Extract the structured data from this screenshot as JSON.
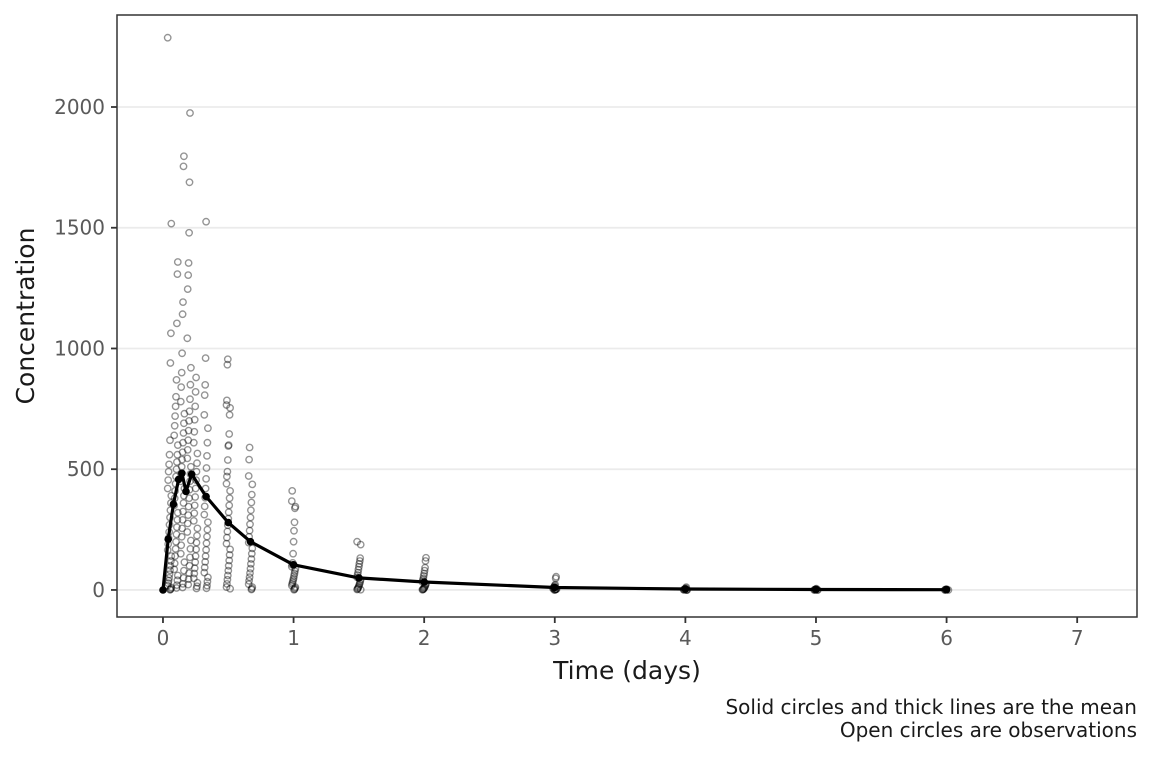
{
  "chart_data": {
    "type": "scatter",
    "title": "",
    "xlabel": "Time (days)",
    "ylabel": "Concentration",
    "caption": [
      "Solid circles and thick lines are the mean",
      "Open circles are observations"
    ],
    "legend": "none",
    "grid": "horizontal-major-only",
    "x_ticks": [
      0,
      1,
      2,
      3,
      4,
      5,
      6,
      7
    ],
    "y_ticks": [
      0,
      500,
      1000,
      1500,
      2000
    ],
    "xlim": [
      -0.352,
      7.458
    ],
    "ylim": [
      -112,
      2381
    ],
    "series": [
      {
        "name": "observations",
        "marker": "open-circle",
        "points_by_time": [
          {
            "t": 0.05,
            "values": [
              2287,
              1517,
              1063,
              940,
              620,
              560,
              520,
              490,
              455,
              420,
              390,
              360,
              330,
              300,
              270,
              240,
              215,
              190,
              165,
              140,
              120,
              100,
              82,
              65,
              50,
              38,
              28,
              18,
              10,
              5,
              2,
              1
            ]
          },
          {
            "t": 0.1,
            "values": [
              1358,
              1308,
              1104,
              870,
              800,
              760,
              720,
              680,
              640,
              600,
              560,
              530,
              500,
              470,
              440,
              410,
              380,
              350,
              320,
              290,
              260,
              230,
              200,
              170,
              140,
              110,
              85,
              60,
              40,
              20,
              8
            ]
          },
          {
            "t": 0.15,
            "values": [
              1796,
              1754,
              1192,
              1142,
              980,
              900,
              840,
              780,
              730,
              690,
              650,
              610,
              570,
              540,
              510,
              480,
              450,
              420,
              390,
              360,
              325,
              290,
              255,
              220,
              185,
              150,
              115,
              80,
              50,
              25,
              10
            ]
          },
          {
            "t": 0.2,
            "values": [
              1975,
              1688,
              1479,
              1354,
              1304,
              1246,
              1042,
              920,
              850,
              790,
              740,
              700,
              660,
              620,
              580,
              545,
              510,
              480,
              450,
              415,
              380,
              345,
              310,
              275,
              240,
              205,
              170,
              135,
              100,
              70,
              45,
              22
            ]
          },
          {
            "t": 0.25,
            "values": [
              880,
              820,
              760,
              705,
              655,
              610,
              565,
              525,
              490,
              455,
              420,
              385,
              350,
              318,
              286,
              255,
              225,
              196,
              168,
              140,
              115,
              90,
              68,
              48,
              30,
              15,
              6
            ]
          },
          {
            "t": 0.33,
            "values": [
              1525,
              960,
              849,
              807,
              725,
              670,
              610,
              555,
              505,
              460,
              420,
              382,
              346,
              312,
              280,
              250,
              221,
              193,
              166,
              140,
              116,
              93,
              72,
              52,
              34,
              18,
              7
            ]
          },
          {
            "t": 0.5,
            "values": [
              955,
              933,
              785,
              766,
              754,
              725,
              646,
              600,
              596,
              538,
              490,
              470,
              440,
              410,
              380,
              350,
              322,
              295,
              268,
              242,
              217,
              192,
              168,
              145,
              122,
              100,
              80,
              60,
              42,
              25,
              12,
              5
            ]
          },
          {
            "t": 0.67,
            "values": [
              590,
              540,
              472,
              437,
              395,
              362,
              330,
              300,
              272,
              246,
              220,
              196,
              172,
              150,
              128,
              108,
              88,
              70,
              53,
              38,
              24,
              12,
              5,
              2
            ]
          },
          {
            "t": 1,
            "values": [
              410,
              368,
              345,
              338,
              280,
              245,
              200,
              150,
              112,
              104,
              96,
              88,
              78,
              68,
              58,
              48,
              40,
              32,
              25,
              18,
              12,
              7,
              3,
              1
            ]
          },
          {
            "t": 1.5,
            "values": [
              200,
              188,
              132,
              120,
              108,
              96,
              84,
              72,
              62,
              52,
              43,
              35,
              28,
              22,
              16,
              11,
              7,
              4,
              2,
              1
            ]
          },
          {
            "t": 2,
            "values": [
              133,
              120,
              92,
              80,
              68,
              58,
              48,
              40,
              33,
              26,
              20,
              15,
              11,
              8,
              5,
              3,
              2,
              1
            ]
          },
          {
            "t": 3,
            "values": [
              55,
              48,
              22,
              18,
              14,
              11,
              8,
              6,
              4,
              3,
              2,
              1,
              1,
              0
            ]
          },
          {
            "t": 4,
            "values": [
              12,
              8,
              5,
              3,
              2,
              1,
              1,
              0,
              0,
              0
            ]
          },
          {
            "t": 5,
            "values": [
              5,
              3,
              2,
              1,
              1,
              0,
              0,
              0
            ]
          },
          {
            "t": 6,
            "values": [
              3,
              2,
              1,
              1,
              0,
              0
            ]
          }
        ]
      },
      {
        "name": "mean",
        "marker": "solid-circle-thick-line",
        "t": [
          0,
          0.04,
          0.08,
          0.12,
          0.145,
          0.176,
          0.22,
          0.33,
          0.5,
          0.67,
          1,
          1.5,
          2,
          3,
          4,
          5,
          6
        ],
        "values": [
          0,
          210,
          355,
          458,
          483,
          408,
          479,
          387,
          279,
          200,
          104,
          50,
          33,
          10,
          4,
          2,
          1
        ]
      }
    ],
    "colors": {
      "observation_stroke": "rgba(0,0,0,0.42)",
      "mean": "#000000",
      "gridline": "#ebebeb",
      "panel_border": "#333333",
      "tick_mark": "#333333",
      "tick_text": "#5a5a5a",
      "title_text": "#1a1a1a"
    }
  }
}
